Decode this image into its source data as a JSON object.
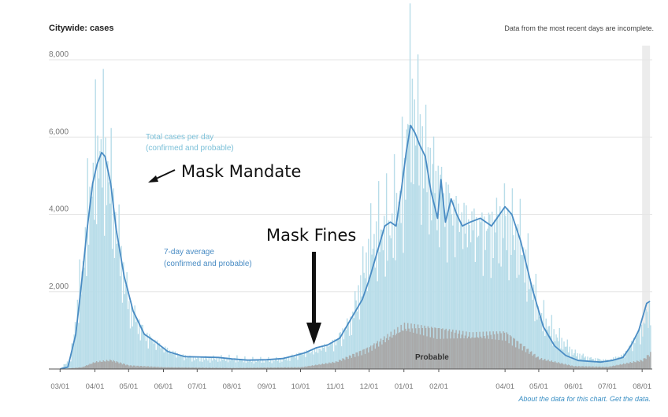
{
  "header": {
    "title": "Citywide: cases",
    "note": "Data from the most recent days are incomplete."
  },
  "footer": {
    "link_text": "About the data for this chart. Get the data."
  },
  "colors": {
    "total_bars": "#b9dde9",
    "probable_bars": "#a9a9a9",
    "avg_line": "#4a8cc4",
    "total_label": "#7cc0d8",
    "avg_label": "#4a8cc4",
    "grid": "#e6e6e6",
    "axis_text": "#777777",
    "incomplete_band": "#ececec"
  },
  "chart_data": {
    "type": "area",
    "title": "Citywide: cases",
    "ylim": [
      0,
      8000
    ],
    "xlim": [
      "2020-02-20",
      "2021-08-10"
    ],
    "y_ticks": [
      "2,000",
      "4,000",
      "6,000",
      "8,000"
    ],
    "y_tick_values": [
      2000,
      4000,
      6000,
      8000
    ],
    "x_ticks": [
      {
        "label": "03/01",
        "date": "2020-03-01"
      },
      {
        "label": "04/01",
        "date": "2020-04-01"
      },
      {
        "label": "05/01",
        "date": "2020-05-01"
      },
      {
        "label": "06/01",
        "date": "2020-06-01"
      },
      {
        "label": "07/01",
        "date": "2020-07-01"
      },
      {
        "label": "08/01",
        "date": "2020-08-01"
      },
      {
        "label": "09/01",
        "date": "2020-09-01"
      },
      {
        "label": "10/01",
        "date": "2020-10-01"
      },
      {
        "label": "11/01",
        "date": "2020-11-01"
      },
      {
        "label": "12/01",
        "date": "2020-12-01"
      },
      {
        "label": "01/01",
        "date": "2021-01-01"
      },
      {
        "label": "02/01",
        "date": "2021-02-01"
      },
      {
        "label": "04/01",
        "date": "2021-04-01"
      },
      {
        "label": "05/01",
        "date": "2021-05-01"
      },
      {
        "label": "06/01",
        "date": "2021-06-01"
      },
      {
        "label": "07/01",
        "date": "2021-07-01"
      },
      {
        "label": "08/01",
        "date": "2021-08-01"
      }
    ],
    "incomplete_period": [
      "2021-08-01",
      "2021-08-08"
    ],
    "series": [
      {
        "name": "Total cases per day (confirmed and probable)",
        "kind": "bars",
        "x": [
          "2020-03-01",
          "2020-03-10",
          "2020-03-20",
          "2020-03-27",
          "2020-04-01",
          "2020-04-06",
          "2020-04-12",
          "2020-04-20",
          "2020-05-01",
          "2020-05-15",
          "2020-06-01",
          "2020-06-15",
          "2020-07-01",
          "2020-07-15",
          "2020-08-01",
          "2020-08-15",
          "2020-09-01",
          "2020-09-15",
          "2020-10-01",
          "2020-10-15",
          "2020-11-01",
          "2020-11-15",
          "2020-12-01",
          "2020-12-10",
          "2020-12-20",
          "2021-01-01",
          "2021-01-05",
          "2021-01-12",
          "2021-01-20",
          "2021-02-01",
          "2021-02-15",
          "2021-03-01",
          "2021-03-15",
          "2021-04-01",
          "2021-04-15",
          "2021-05-01",
          "2021-05-15",
          "2021-06-01",
          "2021-06-15",
          "2021-07-01",
          "2021-07-15",
          "2021-08-01",
          "2021-08-08"
        ],
        "values": [
          10,
          300,
          2800,
          5000,
          6000,
          6500,
          5800,
          4000,
          1800,
          1000,
          600,
          400,
          300,
          300,
          300,
          250,
          260,
          280,
          450,
          550,
          800,
          1400,
          3500,
          4000,
          4100,
          5500,
          7900,
          7000,
          6000,
          5200,
          4500,
          4200,
          4000,
          4300,
          3600,
          1600,
          1000,
          450,
          300,
          250,
          400,
          1200,
          1800
        ]
      },
      {
        "name": "Probable",
        "kind": "bars",
        "x": [
          "2020-03-01",
          "2020-03-20",
          "2020-04-01",
          "2020-04-15",
          "2020-05-01",
          "2020-06-01",
          "2020-08-01",
          "2020-10-01",
          "2020-11-01",
          "2020-12-01",
          "2021-01-01",
          "2021-02-01",
          "2021-03-01",
          "2021-04-01",
          "2021-05-01",
          "2021-06-01",
          "2021-07-01",
          "2021-08-01",
          "2021-08-08"
        ],
        "values": [
          0,
          50,
          200,
          250,
          100,
          50,
          30,
          50,
          200,
          600,
          1200,
          1100,
          950,
          1000,
          300,
          80,
          60,
          250,
          450
        ]
      },
      {
        "name": "7-day average (confirmed and probable)",
        "kind": "line",
        "x": [
          "2020-03-01",
          "2020-03-08",
          "2020-03-15",
          "2020-03-20",
          "2020-03-25",
          "2020-03-30",
          "2020-04-03",
          "2020-04-07",
          "2020-04-10",
          "2020-04-15",
          "2020-04-20",
          "2020-04-27",
          "2020-05-05",
          "2020-05-15",
          "2020-05-25",
          "2020-06-05",
          "2020-06-20",
          "2020-07-05",
          "2020-07-20",
          "2020-08-01",
          "2020-08-15",
          "2020-09-01",
          "2020-09-15",
          "2020-09-25",
          "2020-10-05",
          "2020-10-15",
          "2020-10-25",
          "2020-11-05",
          "2020-11-15",
          "2020-11-25",
          "2020-12-01",
          "2020-12-08",
          "2020-12-15",
          "2020-12-20",
          "2020-12-25",
          "2020-12-30",
          "2021-01-03",
          "2021-01-07",
          "2021-01-11",
          "2021-01-15",
          "2021-01-20",
          "2021-01-25",
          "2021-01-31",
          "2021-02-03",
          "2021-02-07",
          "2021-02-12",
          "2021-02-17",
          "2021-02-22",
          "2021-03-01",
          "2021-03-10",
          "2021-03-20",
          "2021-04-01",
          "2021-04-07",
          "2021-04-15",
          "2021-04-25",
          "2021-05-05",
          "2021-05-15",
          "2021-05-25",
          "2021-06-05",
          "2021-06-15",
          "2021-06-25",
          "2021-07-05",
          "2021-07-15",
          "2021-07-22",
          "2021-07-29",
          "2021-08-05",
          "2021-08-08"
        ],
        "values": [
          0,
          50,
          900,
          2200,
          3600,
          4800,
          5300,
          5600,
          5500,
          4800,
          3600,
          2400,
          1500,
          900,
          700,
          450,
          320,
          310,
          300,
          260,
          230,
          240,
          270,
          340,
          420,
          550,
          620,
          800,
          1300,
          1800,
          2300,
          3000,
          3700,
          3800,
          3700,
          4700,
          5600,
          6300,
          6100,
          5800,
          5500,
          4600,
          3900,
          4900,
          3800,
          4400,
          4000,
          3700,
          3800,
          3900,
          3700,
          4200,
          4000,
          3300,
          2100,
          1100,
          600,
          350,
          220,
          200,
          180,
          220,
          300,
          600,
          1000,
          1700,
          1750
        ]
      }
    ],
    "annotations": [
      {
        "text": "Mask Mandate",
        "date": "2020-04-15",
        "value": 5200
      },
      {
        "text": "Mask Fines",
        "date": "2020-10-01",
        "value": 700
      }
    ],
    "series_labels": [
      {
        "line1": "Total cases per day",
        "line2": "(confirmed and probable)"
      },
      {
        "line1": "7-day average",
        "line2": "(confirmed and probable)"
      },
      {
        "line1": "Probable"
      }
    ]
  }
}
